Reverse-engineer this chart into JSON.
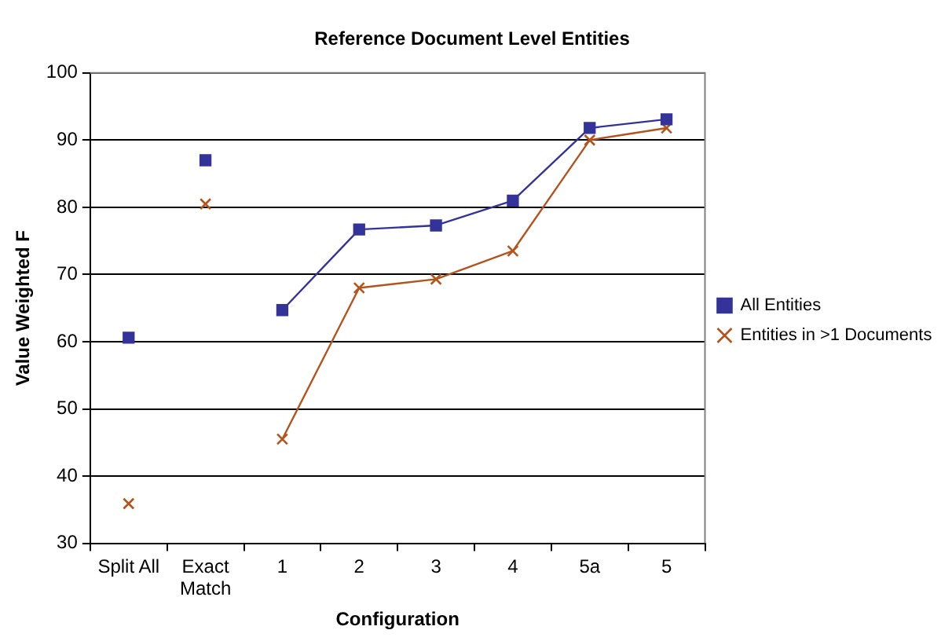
{
  "chart_data": {
    "type": "line",
    "title": "Reference Document Level Entities",
    "xlabel": "Configuration",
    "ylabel": "Value Weighted F",
    "categories": [
      "Split All",
      "Exact Match",
      "1",
      "2",
      "3",
      "4",
      "5a",
      "5"
    ],
    "series": [
      {
        "name": "All Entities",
        "color": "#333399",
        "marker": "square",
        "values": [
          null,
          null,
          64.7,
          76.7,
          77.3,
          81.0,
          91.8,
          93.1
        ]
      },
      {
        "name": "Entities in >1 Documents",
        "color": "#b5531c",
        "marker": "cross",
        "values": [
          null,
          null,
          45.5,
          68.0,
          69.3,
          73.5,
          90.0,
          91.8
        ]
      },
      {
        "type": "scatter",
        "color": "#333399",
        "marker": "square",
        "values": [
          60.6,
          87.0,
          null,
          null,
          null,
          null,
          null,
          null
        ]
      },
      {
        "type": "scatter",
        "color": "#b5531c",
        "marker": "cross",
        "values": [
          35.9,
          80.5,
          null,
          null,
          null,
          null,
          null,
          null
        ]
      }
    ],
    "ylim": [
      30,
      100
    ],
    "yticks": [
      30,
      40,
      50,
      60,
      70,
      80,
      90,
      100
    ],
    "grid": "y",
    "legend": "right"
  }
}
